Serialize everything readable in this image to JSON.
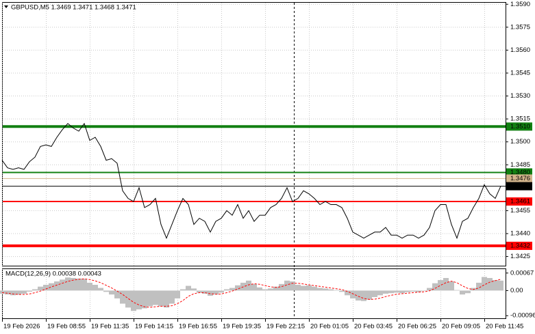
{
  "chart_data": [
    {
      "type": "line",
      "title": "GBPUSD,M5 1.3469 1.3471 1.3468 1.3471",
      "color": "#000000",
      "grid": true,
      "categories": [
        "19 Feb 2026",
        null,
        null,
        null,
        null,
        null,
        null,
        null,
        "19 Feb 08:55",
        null,
        null,
        null,
        null,
        null,
        null,
        null,
        "19 Feb 11:35",
        null,
        null,
        null,
        null,
        null,
        null,
        null,
        "19 Feb 14:15",
        null,
        null,
        null,
        null,
        null,
        null,
        null,
        "19 Feb 16:55",
        null,
        null,
        null,
        null,
        null,
        null,
        null,
        "19 Feb 19:35",
        null,
        null,
        null,
        null,
        null,
        null,
        null,
        "19 Feb 22:15",
        null,
        null,
        null,
        null,
        null,
        null,
        null,
        "20 Feb 01:05",
        null,
        null,
        null,
        null,
        null,
        null,
        null,
        "20 Feb 03:45",
        null,
        null,
        null,
        null,
        null,
        null,
        null,
        "20 Feb 06:25",
        null,
        null,
        null,
        null,
        null,
        null,
        null,
        "20 Feb 09:05",
        null,
        null,
        null,
        null,
        null,
        null,
        null,
        "20 Feb 11:45",
        null,
        null,
        null
      ],
      "values": [
        1.3488,
        1.3483,
        1.3482,
        1.3483,
        1.3482,
        1.3487,
        1.349,
        1.3497,
        1.3498,
        1.3497,
        1.3503,
        1.3508,
        1.3512,
        1.3509,
        1.3507,
        1.3512,
        1.3501,
        1.3503,
        1.3497,
        1.3488,
        1.3489,
        1.3486,
        1.3468,
        1.3463,
        1.3461,
        1.347,
        1.3457,
        1.3459,
        1.3463,
        1.3446,
        1.3437,
        1.3446,
        1.3455,
        1.3463,
        1.3459,
        1.3446,
        1.345,
        1.3448,
        1.3441,
        1.3448,
        1.345,
        1.3455,
        1.3452,
        1.3459,
        1.345,
        1.3455,
        1.3448,
        1.3452,
        1.3452,
        1.3457,
        1.3459,
        1.3463,
        1.347,
        1.3461,
        1.3463,
        1.3468,
        1.3466,
        1.3463,
        1.3459,
        1.3461,
        1.3459,
        1.3459,
        1.3457,
        1.345,
        1.3441,
        1.3439,
        1.3437,
        1.3439,
        1.3441,
        1.3441,
        1.3444,
        1.3439,
        1.3439,
        1.3437,
        1.3439,
        1.3439,
        1.3437,
        1.3439,
        1.3444,
        1.3455,
        1.3459,
        1.3459,
        1.3446,
        1.3437,
        1.3448,
        1.345,
        1.3457,
        1.3463,
        1.3472,
        1.3466,
        1.3463,
        1.3471
      ],
      "ylim": [
        1.3419,
        1.3591
      ],
      "yticks": [
        {
          "value": 1.359,
          "label": "1.3590"
        },
        1.3575,
        {
          "value": 1.356,
          "label": "1.3560"
        },
        1.3545,
        {
          "value": 1.353,
          "label": "1.3530"
        },
        1.3515,
        {
          "value": 1.35,
          "label": "1.3500"
        },
        1.3485,
        1.3455,
        {
          "value": 1.344,
          "label": "1.3440"
        },
        1.3425
      ],
      "levels": [
        {
          "value": 1.351,
          "label": "1.3510",
          "color": "#128012",
          "line_width": 4
        },
        {
          "value": 1.348,
          "label": "1.3480",
          "color": "#128012",
          "line_width": 2
        },
        {
          "value": 1.3476,
          "label": "1.3476",
          "color": "#d2b48c",
          "line_width": 1
        },
        {
          "value": 1.3471,
          "label": "1.3471",
          "color": "#000000",
          "line_width": 1
        },
        {
          "value": 1.3461,
          "label": "1.3461",
          "color": "#ff0000",
          "line_width": 2
        },
        {
          "value": 1.3432,
          "label": "1.3432",
          "color": "#ff0000",
          "line_width": 4
        }
      ]
    },
    {
      "type": "bar",
      "title": "MACD(12,26,9) 0.00038 0.00043",
      "ylim": [
        -0.00106,
        0.00082
      ],
      "yticks": [
        0.00067,
        {
          "value": 0,
          "label": "0.00"
        },
        -0.00096
      ],
      "series": [
        {
          "type": "bar",
          "color": "#c0c0c0",
          "values": [
            -0.00012,
            -0.00015,
            -0.00018,
            -0.00016,
            -0.00012,
            -4e-05,
            5e-05,
            0.00015,
            0.00022,
            0.00028,
            0.00035,
            0.00042,
            0.0005,
            0.00048,
            0.00046,
            0.00045,
            0.0003,
            0.00022,
            0.0001,
            -5e-05,
            -0.00015,
            -0.0003,
            -0.0005,
            -0.00065,
            -0.00078,
            -0.00072,
            -0.00068,
            -0.0006,
            -0.00055,
            -0.0006,
            -0.00065,
            -0.0005,
            -0.0003,
            5e-05,
            0.00018,
            8e-05,
            -8e-05,
            -0.00012,
            -0.0002,
            -0.00015,
            -8e-05,
            5e-05,
            0.0001,
            0.0002,
            0.0003,
            0.00038,
            0.00025,
            0.00012,
            5e-05,
            8e-05,
            0.00015,
            0.00025,
            0.00038,
            0.00035,
            0.00022,
            0.00018,
            0.0002,
            0.00015,
            0.0001,
            8e-05,
            5e-05,
            2e-05,
            -5e-05,
            -0.00018,
            -0.0003,
            -0.00038,
            -0.0004,
            -0.00035,
            -0.00025,
            -0.00018,
            -0.00012,
            -0.0001,
            -8e-05,
            -0.0001,
            -6e-05,
            -4e-05,
            -6e-05,
            -2e-05,
            0.0001,
            0.00028,
            0.0004,
            0.00048,
            0.00035,
            2e-05,
            -0.00015,
            -0.0001,
            0.0001,
            0.0003,
            0.00052,
            0.00048,
            0.0004,
            0.00038
          ]
        },
        {
          "type": "line",
          "color": "#ff0000",
          "values": [
            -8e-05,
            -0.0001,
            -0.00013,
            -0.00015,
            -0.00015,
            -0.00013,
            -8e-05,
            -2e-05,
            6e-05,
            0.00014,
            0.00021,
            0.00028,
            0.00035,
            0.0004,
            0.00043,
            0.00045,
            0.00042,
            0.00037,
            0.0003,
            0.0002,
            0.0001,
            -2e-05,
            -0.00015,
            -0.0003,
            -0.00045,
            -0.00055,
            -0.00062,
            -0.00064,
            -0.00062,
            -0.0006,
            -0.0006,
            -0.00058,
            -0.0005,
            -0.00038,
            -0.00022,
            -0.00012,
            -8e-05,
            -8e-05,
            -0.00012,
            -0.00014,
            -0.00013,
            -8e-05,
            -2e-05,
            6e-05,
            0.00014,
            0.00022,
            0.00026,
            0.00024,
            0.00019,
            0.00014,
            0.00012,
            0.00015,
            0.00022,
            0.00028,
            0.00028,
            0.00025,
            0.00022,
            0.00019,
            0.00016,
            0.00013,
            0.0001,
            7e-05,
            4e-05,
            -3e-05,
            -0.00012,
            -0.00022,
            -0.0003,
            -0.00034,
            -0.00033,
            -0.00029,
            -0.00023,
            -0.00018,
            -0.00014,
            -0.00012,
            -0.0001,
            -8e-05,
            -6e-05,
            -5e-05,
            -1e-05,
            8e-05,
            0.0002,
            0.0003,
            0.00036,
            0.0003,
            0.00018,
            8e-05,
            4e-05,
            0.0001,
            0.00022,
            0.00032,
            0.00038,
            0.00043
          ]
        }
      ]
    }
  ]
}
